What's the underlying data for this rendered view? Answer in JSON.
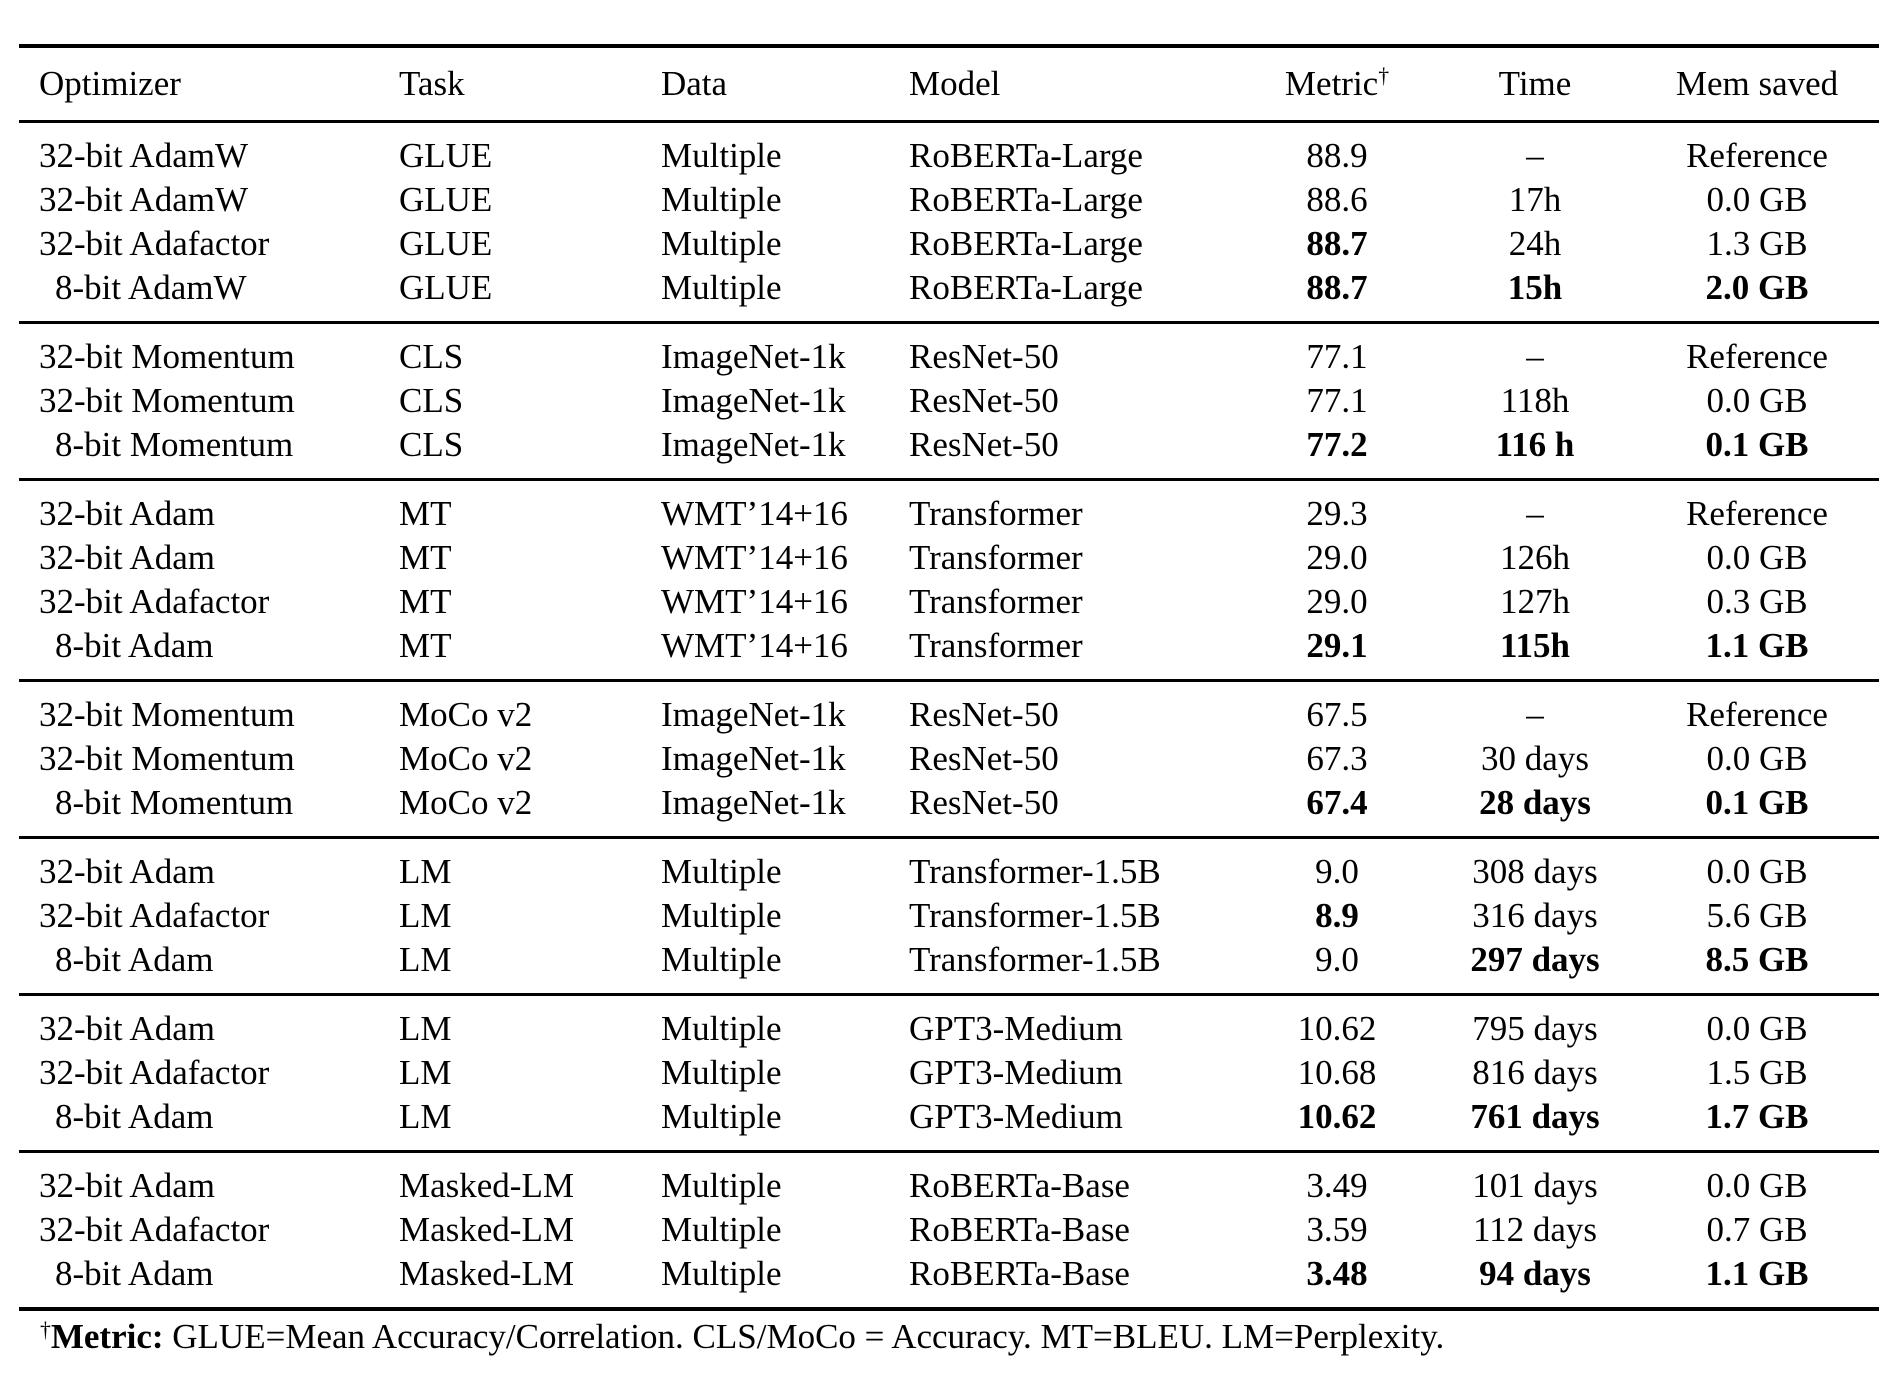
{
  "table": {
    "columns": [
      {
        "key": "optimizer",
        "label": "Optimizer"
      },
      {
        "key": "task",
        "label": "Task"
      },
      {
        "key": "data",
        "label": "Data"
      },
      {
        "key": "model",
        "label": "Model"
      },
      {
        "key": "metric",
        "label": "Metric",
        "sup": "†"
      },
      {
        "key": "time",
        "label": "Time"
      },
      {
        "key": "mem",
        "label": "Mem saved"
      }
    ],
    "groups": [
      {
        "rows": [
          {
            "optimizer": "32-bit AdamW",
            "task": "GLUE",
            "data": "Multiple",
            "model": "RoBERTa-Large",
            "metric": "88.9",
            "time": "–",
            "mem": "Reference",
            "bold": []
          },
          {
            "optimizer": "32-bit AdamW",
            "task": "GLUE",
            "data": "Multiple",
            "model": "RoBERTa-Large",
            "metric": "88.6",
            "time": "17h",
            "mem": "0.0 GB",
            "bold": []
          },
          {
            "optimizer": "32-bit Adafactor",
            "task": "GLUE",
            "data": "Multiple",
            "model": "RoBERTa-Large",
            "metric": "88.7",
            "time": "24h",
            "mem": "1.3 GB",
            "bold": [
              "metric"
            ]
          },
          {
            "optimizer": "8-bit AdamW",
            "task": "GLUE",
            "data": "Multiple",
            "model": "RoBERTa-Large",
            "metric": "88.7",
            "time": "15h",
            "mem": "2.0 GB",
            "bold": [
              "metric",
              "time",
              "mem"
            ]
          }
        ]
      },
      {
        "rows": [
          {
            "optimizer": "32-bit Momentum",
            "task": "CLS",
            "data": "ImageNet-1k",
            "model": "ResNet-50",
            "metric": "77.1",
            "time": "–",
            "mem": "Reference",
            "bold": []
          },
          {
            "optimizer": "32-bit Momentum",
            "task": "CLS",
            "data": "ImageNet-1k",
            "model": "ResNet-50",
            "metric": "77.1",
            "time": "118h",
            "mem": "0.0 GB",
            "bold": []
          },
          {
            "optimizer": "8-bit Momentum",
            "task": "CLS",
            "data": "ImageNet-1k",
            "model": "ResNet-50",
            "metric": "77.2",
            "time": "116 h",
            "mem": "0.1 GB",
            "bold": [
              "metric",
              "time",
              "mem"
            ]
          }
        ]
      },
      {
        "rows": [
          {
            "optimizer": "32-bit Adam",
            "task": "MT",
            "data": "WMT’14+16",
            "model": "Transformer",
            "metric": "29.3",
            "time": "–",
            "mem": "Reference",
            "bold": []
          },
          {
            "optimizer": "32-bit Adam",
            "task": "MT",
            "data": "WMT’14+16",
            "model": "Transformer",
            "metric": "29.0",
            "time": "126h",
            "mem": "0.0 GB",
            "bold": []
          },
          {
            "optimizer": "32-bit Adafactor",
            "task": "MT",
            "data": "WMT’14+16",
            "model": "Transformer",
            "metric": "29.0",
            "time": "127h",
            "mem": "0.3 GB",
            "bold": []
          },
          {
            "optimizer": "8-bit Adam",
            "task": "MT",
            "data": "WMT’14+16",
            "model": "Transformer",
            "metric": "29.1",
            "time": "115h",
            "mem": "1.1 GB",
            "bold": [
              "metric",
              "time",
              "mem"
            ]
          }
        ]
      },
      {
        "rows": [
          {
            "optimizer": "32-bit Momentum",
            "task": "MoCo v2",
            "data": "ImageNet-1k",
            "model": "ResNet-50",
            "metric": "67.5",
            "time": "–",
            "mem": "Reference",
            "bold": []
          },
          {
            "optimizer": "32-bit Momentum",
            "task": "MoCo v2",
            "data": "ImageNet-1k",
            "model": "ResNet-50",
            "metric": "67.3",
            "time": "30 days",
            "mem": "0.0 GB",
            "bold": []
          },
          {
            "optimizer": "8-bit Momentum",
            "task": "MoCo v2",
            "data": "ImageNet-1k",
            "model": "ResNet-50",
            "metric": "67.4",
            "time": "28 days",
            "mem": "0.1 GB",
            "bold": [
              "metric",
              "time",
              "mem"
            ]
          }
        ]
      },
      {
        "rows": [
          {
            "optimizer": "32-bit Adam",
            "task": "LM",
            "data": "Multiple",
            "model": "Transformer-1.5B",
            "metric": "9.0",
            "time": "308 days",
            "mem": "0.0 GB",
            "bold": []
          },
          {
            "optimizer": "32-bit Adafactor",
            "task": "LM",
            "data": "Multiple",
            "model": "Transformer-1.5B",
            "metric": "8.9",
            "time": "316 days",
            "mem": "5.6 GB",
            "bold": [
              "metric"
            ]
          },
          {
            "optimizer": "8-bit Adam",
            "task": "LM",
            "data": "Multiple",
            "model": "Transformer-1.5B",
            "metric": "9.0",
            "time": "297 days",
            "mem": "8.5 GB",
            "bold": [
              "time",
              "mem"
            ]
          }
        ]
      },
      {
        "rows": [
          {
            "optimizer": "32-bit Adam",
            "task": "LM",
            "data": "Multiple",
            "model": "GPT3-Medium",
            "metric": "10.62",
            "time": "795 days",
            "mem": "0.0 GB",
            "bold": []
          },
          {
            "optimizer": "32-bit Adafactor",
            "task": "LM",
            "data": "Multiple",
            "model": "GPT3-Medium",
            "metric": "10.68",
            "time": "816 days",
            "mem": "1.5 GB",
            "bold": []
          },
          {
            "optimizer": "8-bit Adam",
            "task": "LM",
            "data": "Multiple",
            "model": "GPT3-Medium",
            "metric": "10.62",
            "time": "761 days",
            "mem": "1.7 GB",
            "bold": [
              "metric",
              "time",
              "mem"
            ]
          }
        ]
      },
      {
        "rows": [
          {
            "optimizer": "32-bit Adam",
            "task": "Masked-LM",
            "data": "Multiple",
            "model": "RoBERTa-Base",
            "metric": "3.49",
            "time": "101 days",
            "mem": "0.0 GB",
            "bold": []
          },
          {
            "optimizer": "32-bit Adafactor",
            "task": "Masked-LM",
            "data": "Multiple",
            "model": "RoBERTa-Base",
            "metric": "3.59",
            "time": "112 days",
            "mem": "0.7 GB",
            "bold": []
          },
          {
            "optimizer": "8-bit Adam",
            "task": "Masked-LM",
            "data": "Multiple",
            "model": "RoBERTa-Base",
            "metric": "3.48",
            "time": "94 days",
            "mem": "1.1 GB",
            "bold": [
              "metric",
              "time",
              "mem"
            ]
          }
        ]
      }
    ]
  },
  "footnote": {
    "dagger": "†",
    "label": "Metric:",
    "text": " GLUE=Mean Accuracy/Correlation. CLS/MoCo = Accuracy. MT=BLEU. LM=Perplexity."
  }
}
